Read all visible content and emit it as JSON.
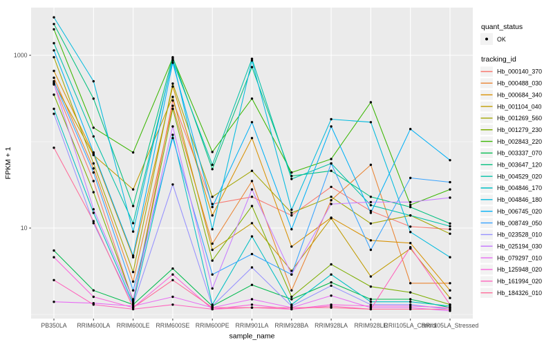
{
  "chart_data": {
    "type": "line",
    "title": "",
    "xlabel": "sample_name",
    "ylabel": "FPKM + 1",
    "y_scale": "log10",
    "ylim": [
      1,
      3200
    ],
    "y_tick_labels": [
      "10",
      "1000"
    ],
    "y_major_breaks": [
      10,
      1000
    ],
    "y_minor_breaks": [
      1,
      100
    ],
    "grid": "on",
    "legend_position": "right",
    "panel_bg": "#EBEBEB",
    "grid_color": "#FFFFFF",
    "point_color": "#000000",
    "tick_label_color": "#4D4D4D",
    "categories": [
      "PB350LA",
      "RRIM600LA",
      "RRIM600LE",
      "RRIM600SE",
      "RRIM600PE",
      "RRIM901LA",
      "RRIM928BA",
      "RRIM928LA",
      "RRIM928LE",
      "RRII105LA_Control",
      "RRII105LA_Stressed"
    ],
    "legend": {
      "quant_status_title": "quant_status",
      "quant_status_items": [
        {
          "label": "OK",
          "marker": "point",
          "color": "#000000"
        }
      ],
      "tracking_id_title": "tracking_id",
      "key_bg": "#F2F2F2"
    },
    "series": [
      {
        "name": "Hb_000140_370",
        "color": "#F8766D",
        "values": [
          460,
          35,
          1.4,
          300,
          19,
          23,
          14,
          30,
          15.8,
          10.4,
          9.7
        ]
      },
      {
        "name": "Hb_000488_030",
        "color": "#EA8331",
        "values": [
          550,
          49,
          2.4,
          260,
          6.6,
          35,
          1.9,
          21,
          54,
          2.3,
          2.3
        ]
      },
      {
        "name": "Hb_000684_340",
        "color": "#D89000",
        "values": [
          660,
          72,
          4.6,
          435,
          14,
          110,
          6.1,
          13.2,
          7.2,
          6.7,
          1.9
        ]
      },
      {
        "name": "Hb_001104_040",
        "color": "#C09B00",
        "values": [
          480,
          70,
          28,
          330,
          5.6,
          11.4,
          3.2,
          13,
          2.75,
          5.8,
          1.55
        ]
      },
      {
        "name": "Hb_001269_560",
        "color": "#A3A500",
        "values": [
          950,
          56,
          3.1,
          470,
          23,
          46,
          15,
          23,
          11.3,
          14,
          8.6
        ]
      },
      {
        "name": "Hb_001279_230",
        "color": "#7CAE00",
        "values": [
          350,
          26,
          1.45,
          240,
          4.2,
          18,
          1.6,
          3.8,
          2.1,
          1.8,
          1.3
        ]
      },
      {
        "name": "Hb_002843_220",
        "color": "#39B600",
        "values": [
          2000,
          145,
          75,
          930,
          76,
          315,
          44,
          63,
          286,
          18.5,
          28
        ]
      },
      {
        "name": "Hb_003337_070",
        "color": "#00BB4E",
        "values": [
          5.5,
          1.9,
          1.3,
          3.4,
          1.25,
          2.2,
          1.5,
          2.35,
          1.5,
          1.5,
          1.2
        ]
      },
      {
        "name": "Hb_003647_120",
        "color": "#00BF7D",
        "values": [
          2300,
          315,
          18,
          950,
          48,
          730,
          40,
          46,
          23,
          17.5,
          11.3
        ]
      },
      {
        "name": "Hb_004529_020",
        "color": "#00C1A7",
        "values": [
          1380,
          115,
          11.4,
          870,
          54,
          910,
          37,
          56,
          18.4,
          14,
          10.5
        ]
      },
      {
        "name": "Hb_004846_170",
        "color": "#00BFC4",
        "values": [
          240,
          15,
          1.35,
          120,
          1.3,
          8,
          1.3,
          2.9,
          1.4,
          1.4,
          1.25
        ]
      },
      {
        "name": "Hb_004846_180",
        "color": "#00BADE",
        "values": [
          2750,
          500,
          9.1,
          900,
          9.7,
          870,
          16.3,
          182,
          168,
          9,
          4.6
        ]
      },
      {
        "name": "Hb_006745_020",
        "color": "#00B0F6",
        "values": [
          1140,
          75,
          4.8,
          820,
          17.5,
          168,
          9.7,
          150,
          15,
          140,
          61
        ]
      },
      {
        "name": "Hb_008749_050",
        "color": "#35A2FF",
        "values": [
          500,
          44,
          1.9,
          110,
          2.9,
          5,
          2.9,
          56,
          5.6,
          38,
          34
        ]
      },
      {
        "name": "Hb_023528_010",
        "color": "#9590FF",
        "values": [
          210,
          11.4,
          1.3,
          32,
          1.25,
          3.5,
          1.25,
          2.15,
          1.3,
          1.3,
          1.15
        ]
      },
      {
        "name": "Hb_025194_030",
        "color": "#C77CFF",
        "values": [
          470,
          16.5,
          1.5,
          150,
          2.0,
          28,
          2.9,
          19,
          20,
          20,
          22.5
        ]
      },
      {
        "name": "Hb_079297_010",
        "color": "#E76BF3",
        "values": [
          1.4,
          1.35,
          1.25,
          1.6,
          1.2,
          1.5,
          1.2,
          1.65,
          1.2,
          1.2,
          1.1
        ]
      },
      {
        "name": "Hb_125948_020",
        "color": "#FA62DB",
        "values": [
          4.6,
          1.6,
          1.2,
          2.9,
          1.15,
          1.3,
          1.15,
          1.3,
          1.25,
          1.25,
          1.2
        ]
      },
      {
        "name": "Hb_161994_020",
        "color": "#FF62BC",
        "values": [
          2.5,
          1.3,
          1.15,
          1.3,
          1.15,
          1.2,
          1.15,
          1.25,
          1.15,
          6,
          1.3
        ]
      },
      {
        "name": "Hb_184326_010",
        "color": "#FF6A98",
        "values": [
          85,
          12,
          1.2,
          2.5,
          1.2,
          1.2,
          1.2,
          1.2,
          1.15,
          1.15,
          1.15
        ]
      }
    ]
  }
}
